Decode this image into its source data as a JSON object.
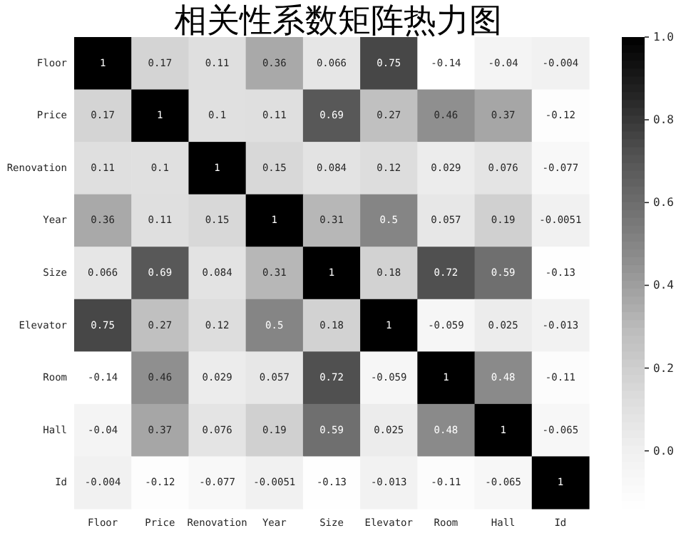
{
  "chart_data": {
    "type": "heatmap",
    "title": "相关性系数矩阵热力图",
    "categories": [
      "Floor",
      "Price",
      "Renovation",
      "Year",
      "Size",
      "Elevator",
      "Room",
      "Hall",
      "Id"
    ],
    "y_categories": [
      "Floor",
      "Price",
      "Renovation",
      "Year",
      "Size",
      "Elevator",
      "Room",
      "Hall",
      "Id"
    ],
    "cells": [
      [
        1,
        0.17,
        0.11,
        0.36,
        0.066,
        0.75,
        -0.14,
        -0.04,
        -0.004
      ],
      [
        0.17,
        1,
        0.1,
        0.11,
        0.69,
        0.27,
        0.46,
        0.37,
        -0.12
      ],
      [
        0.11,
        0.1,
        1,
        0.15,
        0.084,
        0.12,
        0.029,
        0.076,
        -0.077
      ],
      [
        0.36,
        0.11,
        0.15,
        1,
        0.31,
        0.5,
        0.057,
        0.19,
        -0.0051
      ],
      [
        0.066,
        0.69,
        0.084,
        0.31,
        1,
        0.18,
        0.72,
        0.59,
        -0.13
      ],
      [
        0.75,
        0.27,
        0.12,
        0.5,
        0.18,
        1,
        -0.059,
        0.025,
        -0.013
      ],
      [
        -0.14,
        0.46,
        0.029,
        0.057,
        0.72,
        -0.059,
        1,
        0.48,
        -0.11
      ],
      [
        -0.04,
        0.37,
        0.076,
        0.19,
        0.59,
        0.025,
        0.48,
        1,
        -0.065
      ],
      [
        -0.004,
        -0.12,
        -0.077,
        -0.0051,
        -0.13,
        -0.013,
        -0.11,
        -0.065,
        1
      ]
    ],
    "data_labels": true,
    "clim": [
      -0.14,
      1
    ],
    "cticks": [
      {
        "value": 0,
        "label": "0.0"
      },
      {
        "value": 0.2,
        "label": "0.2"
      },
      {
        "value": 0.4,
        "label": "0.4"
      },
      {
        "value": 0.6,
        "label": "0.6"
      },
      {
        "value": 0.8,
        "label": "0.8"
      },
      {
        "value": 1,
        "label": "1.0"
      }
    ]
  }
}
